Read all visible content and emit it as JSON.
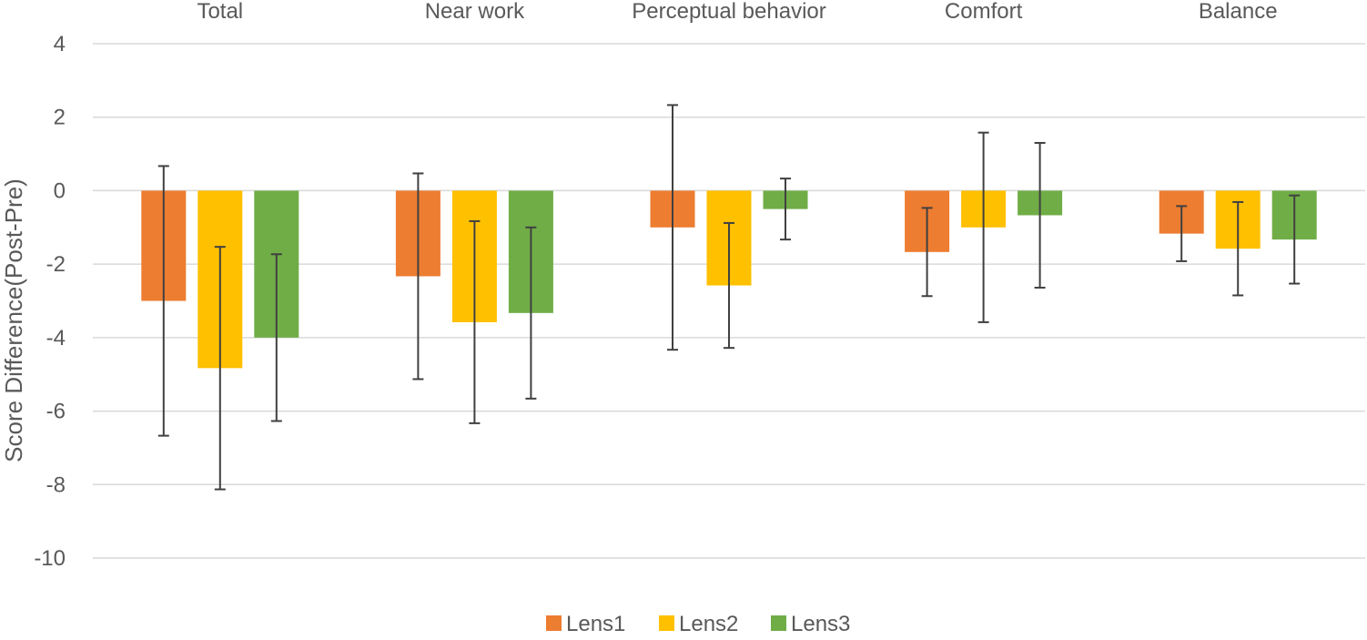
{
  "chart_data": {
    "type": "bar",
    "title": "",
    "xlabel": "",
    "ylabel": "Score Difference(Post-Pre)",
    "ylim": [
      -10,
      4
    ],
    "yticks": [
      -10,
      -8,
      -6,
      -4,
      -2,
      0,
      2,
      4
    ],
    "categories": [
      "Total",
      "Near work",
      "Perceptual behavior",
      "Comfort",
      "Balance"
    ],
    "category_label_position": "top",
    "grid": true,
    "legend_position": "bottom",
    "series": [
      {
        "name": "Lens1",
        "color": "#ED7D31",
        "values": [
          -3.0,
          -2.33,
          -1.0,
          -1.67,
          -1.17
        ],
        "error": [
          3.67,
          2.8,
          3.33,
          1.2,
          0.75
        ]
      },
      {
        "name": "Lens2",
        "color": "#FFC000",
        "values": [
          -4.83,
          -3.58,
          -2.58,
          -1.0,
          -1.58
        ],
        "error": [
          3.3,
          2.75,
          1.7,
          2.58,
          1.27
        ]
      },
      {
        "name": "Lens3",
        "color": "#70AD47",
        "values": [
          -4.0,
          -3.33,
          -0.5,
          -0.67,
          -1.33
        ],
        "error": [
          2.27,
          2.33,
          0.83,
          1.97,
          1.2
        ]
      }
    ]
  }
}
